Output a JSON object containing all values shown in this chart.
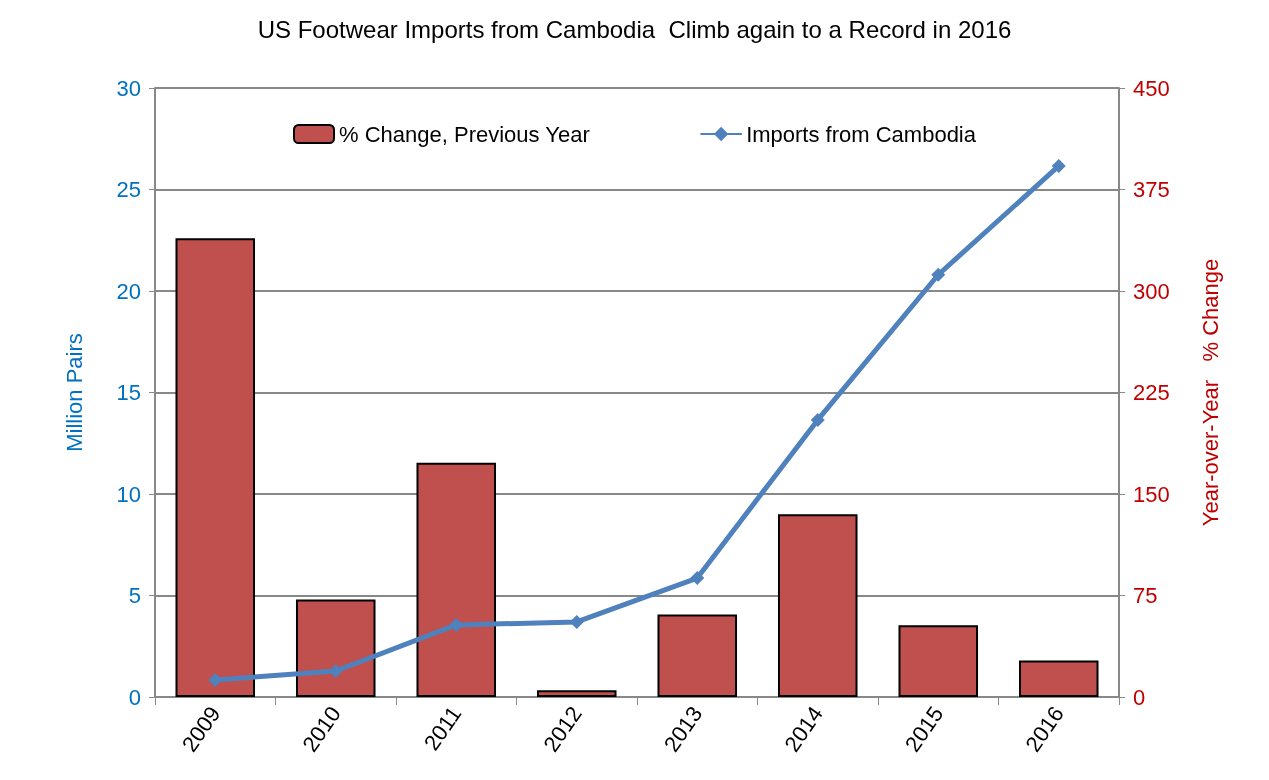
{
  "chart_data": {
    "type": "bar",
    "title": "US Footwear Imports from Cambodia  Climb again to a Record in 2016",
    "ylabel": "Million Pairs",
    "y2label": "Year-over-Year   % Change",
    "categories": [
      "2009",
      "2010",
      "2011",
      "2012",
      "2013",
      "2014",
      "2015",
      "2016"
    ],
    "series": [
      {
        "name": "% Change, Previous Year",
        "axis": "y2",
        "color": "#c0504d",
        "values": [
          339,
          72,
          173,
          5,
          61,
          135,
          53,
          27
        ]
      },
      {
        "name": "Imports from Cambodia",
        "type": "line",
        "axis": "y",
        "color": "#4f81bd",
        "marker": "diamond",
        "values": [
          0.84,
          1.28,
          3.55,
          3.7,
          5.86,
          13.65,
          20.8,
          26.16
        ]
      }
    ],
    "ylim": [
      0,
      30
    ],
    "yticks": [
      0,
      5,
      10,
      15,
      20,
      25,
      30
    ],
    "y2lim": [
      0,
      450
    ],
    "y2ticks": [
      0,
      75,
      150,
      225,
      300,
      375,
      450
    ],
    "grid": "y",
    "legend": "top"
  }
}
